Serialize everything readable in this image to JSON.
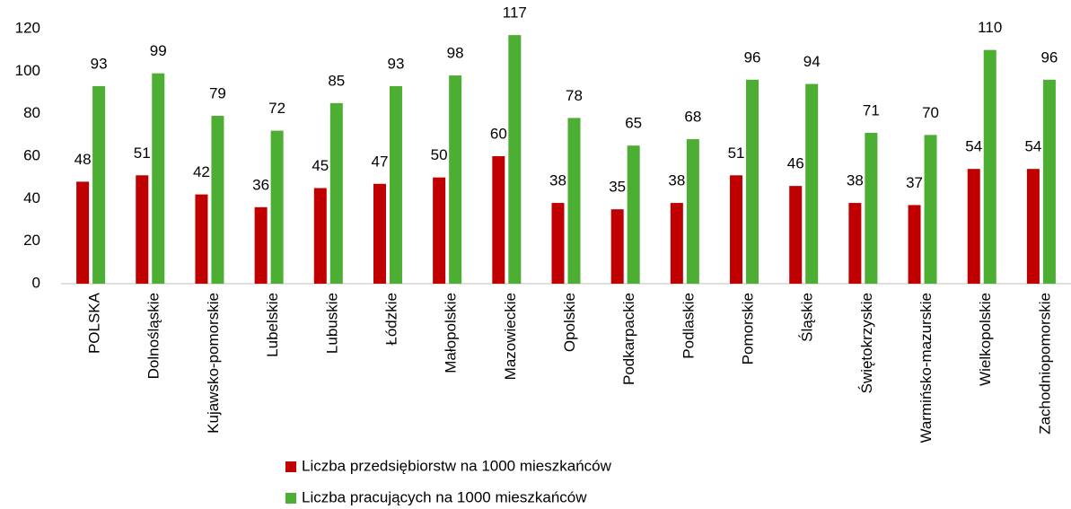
{
  "chart_data": {
    "type": "bar",
    "categories": [
      "POLSKA",
      "Dolnośląskie",
      "Kujawsko-pomorskie",
      "Lubelskie",
      "Lubuskie",
      "Łódzkie",
      "Małopolskie",
      "Mazowieckie",
      "Opolskie",
      "Podkarpackie",
      "Podlaskie",
      "Pomorskie",
      "Śląskie",
      "Świętokrzyskie",
      "Warmińsko-mazurskie",
      "Wielkopolskie",
      "Zachodniopomorskie"
    ],
    "series": [
      {
        "name": "Liczba przedsiębiorstw na 1000 mieszkańców",
        "color": "#c00000",
        "values": [
          48,
          51,
          42,
          36,
          45,
          47,
          50,
          60,
          38,
          35,
          38,
          51,
          46,
          38,
          37,
          54,
          54
        ]
      },
      {
        "name": "Liczba pracujących na 1000 mieszkańców",
        "color": "#4cae33",
        "values": [
          93,
          99,
          79,
          72,
          85,
          93,
          98,
          117,
          78,
          65,
          68,
          96,
          94,
          71,
          70,
          110,
          96
        ]
      }
    ],
    "ylim": [
      0,
      120
    ],
    "yticks": [
      0,
      20,
      40,
      60,
      80,
      100,
      120
    ],
    "grid": false,
    "legend": "bottom"
  }
}
